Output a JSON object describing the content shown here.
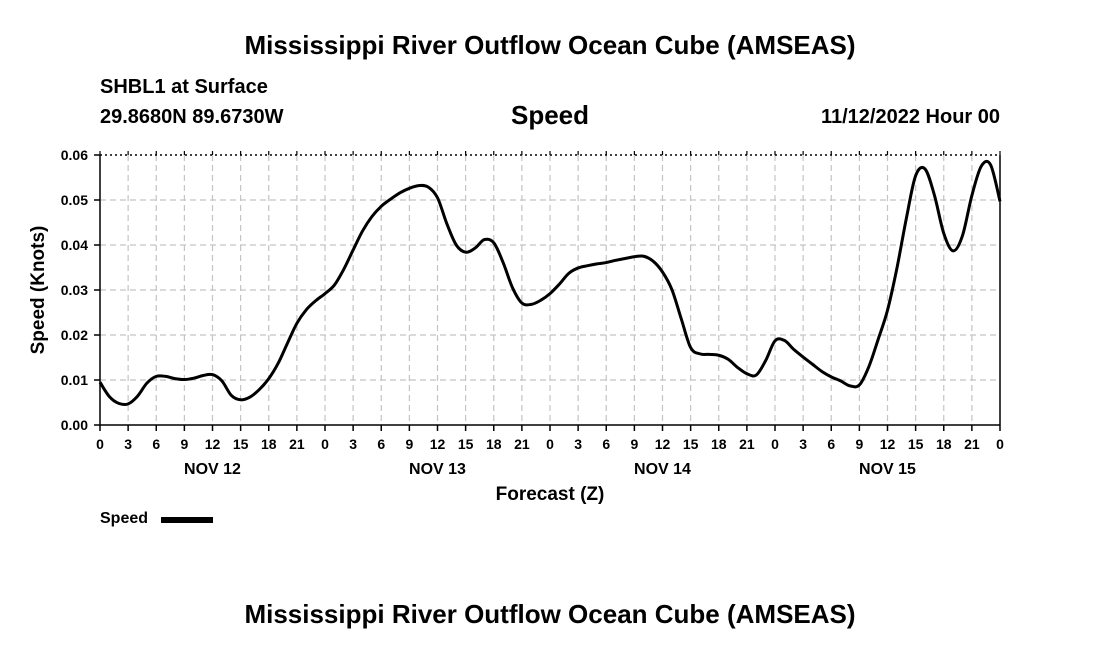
{
  "header": {
    "title": "Mississippi River Outflow Ocean Cube (AMSEAS)",
    "station": "SHBL1 at Surface",
    "coords": "29.8680N  89.6730W",
    "variable": "Speed",
    "timestamp": "11/12/2022 Hour 00"
  },
  "footer": {
    "title": "Mississippi River Outflow Ocean Cube (AMSEAS)"
  },
  "legend": {
    "label": "Speed"
  },
  "chart_data": {
    "type": "line",
    "title": "Speed",
    "xlabel": "Forecast (Z)",
    "ylabel": "Speed (Knots)",
    "xlim": [
      0,
      96
    ],
    "ylim": [
      0.0,
      0.06
    ],
    "yticks": [
      0.0,
      0.01,
      0.02,
      0.03,
      0.04,
      0.05,
      0.06
    ],
    "ytick_labels": [
      "0.00",
      "0.01",
      "0.02",
      "0.03",
      "0.04",
      "0.05",
      "0.06"
    ],
    "xtick_labels": [
      "0",
      "3",
      "6",
      "9",
      "12",
      "15",
      "18",
      "21",
      "0",
      "3",
      "6",
      "9",
      "12",
      "15",
      "18",
      "21",
      "0",
      "3",
      "6",
      "9",
      "12",
      "15",
      "18",
      "21",
      "0",
      "3",
      "6",
      "9",
      "12",
      "15",
      "18",
      "21",
      "0"
    ],
    "days": [
      {
        "label": "NOV 12",
        "hour": 12
      },
      {
        "label": "NOV 13",
        "hour": 36
      },
      {
        "label": "NOV 14",
        "hour": 60
      },
      {
        "label": "NOV 15",
        "hour": 84
      }
    ],
    "grid": true,
    "series": [
      {
        "name": "Speed",
        "color": "#000000",
        "x": [
          0,
          1,
          2,
          3,
          4,
          5,
          6,
          7,
          8,
          9,
          10,
          11,
          12,
          13,
          14,
          15,
          16,
          17,
          18,
          19,
          20,
          21,
          22,
          23,
          24,
          25,
          26,
          27,
          28,
          29,
          30,
          31,
          32,
          33,
          34,
          35,
          36,
          37,
          38,
          39,
          40,
          41,
          42,
          43,
          44,
          45,
          46,
          47,
          48,
          49,
          50,
          51,
          52,
          53,
          54,
          55,
          56,
          57,
          58,
          59,
          60,
          61,
          62,
          63,
          64,
          65,
          66,
          67,
          68,
          69,
          70,
          71,
          72,
          73,
          74,
          75,
          76,
          77,
          78,
          79,
          80,
          81,
          82,
          83,
          84,
          85,
          86,
          87,
          88,
          89,
          90,
          91,
          92,
          93,
          94,
          95,
          96
        ],
        "values": [
          0.0095,
          0.0063,
          0.0048,
          0.0047,
          0.0064,
          0.0093,
          0.0108,
          0.0108,
          0.0103,
          0.0101,
          0.0104,
          0.011,
          0.0112,
          0.0098,
          0.0066,
          0.0056,
          0.0062,
          0.0079,
          0.0103,
          0.0137,
          0.0182,
          0.0226,
          0.0256,
          0.0276,
          0.0292,
          0.0311,
          0.0346,
          0.0389,
          0.0431,
          0.0463,
          0.0486,
          0.0502,
          0.0516,
          0.0526,
          0.0532,
          0.0529,
          0.0505,
          0.0447,
          0.04,
          0.0384,
          0.0393,
          0.0412,
          0.0405,
          0.0361,
          0.0305,
          0.0271,
          0.0268,
          0.0277,
          0.0292,
          0.0313,
          0.0337,
          0.0349,
          0.0354,
          0.0358,
          0.0361,
          0.0366,
          0.037,
          0.0374,
          0.0375,
          0.0364,
          0.034,
          0.0301,
          0.0236,
          0.0172,
          0.0158,
          0.0157,
          0.0155,
          0.0146,
          0.0128,
          0.0114,
          0.0111,
          0.0143,
          0.0187,
          0.0188,
          0.0168,
          0.0151,
          0.0135,
          0.0119,
          0.0107,
          0.0098,
          0.0087,
          0.0089,
          0.0129,
          0.019,
          0.0255,
          0.0348,
          0.0458,
          0.0554,
          0.0569,
          0.0511,
          0.0426,
          0.0387,
          0.0421,
          0.051,
          0.0575,
          0.0578,
          0.0497
        ]
      }
    ]
  }
}
